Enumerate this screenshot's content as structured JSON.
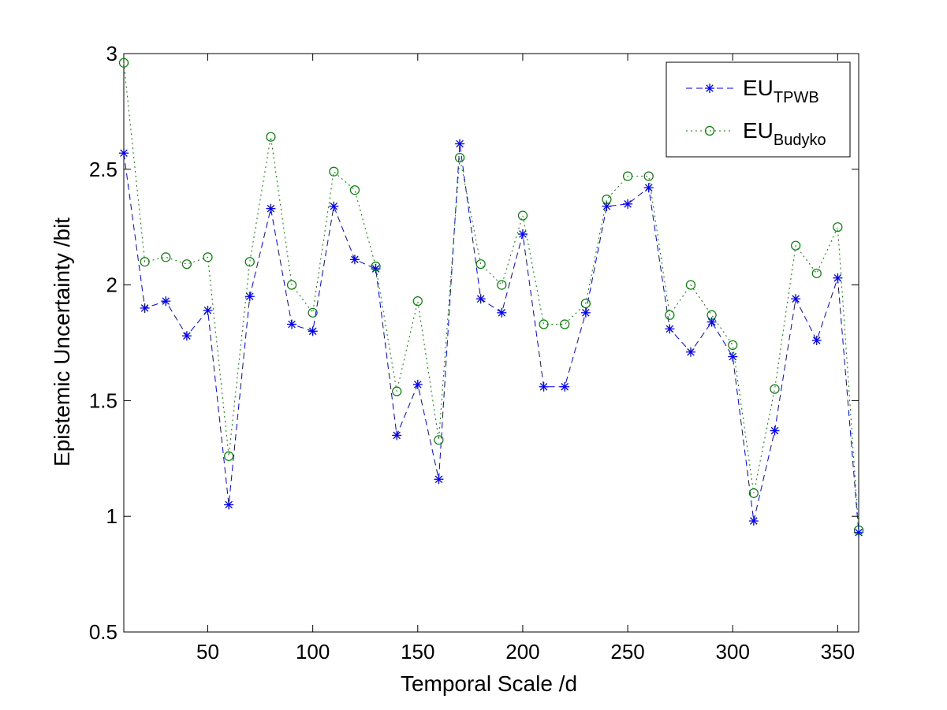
{
  "chart_data": {
    "type": "line",
    "xlabel": "Temporal Scale /d",
    "ylabel": "Epistemic Uncertainty /bit",
    "xlim": [
      10,
      360
    ],
    "ylim": [
      0.5,
      3
    ],
    "xticks": [
      50,
      100,
      150,
      200,
      250,
      300,
      350
    ],
    "yticks": [
      0.5,
      1,
      1.5,
      2,
      2.5,
      3
    ],
    "grid": false,
    "legend_position": "top-right",
    "x": [
      10,
      20,
      30,
      40,
      50,
      60,
      70,
      80,
      90,
      100,
      110,
      120,
      130,
      140,
      150,
      160,
      170,
      180,
      190,
      200,
      210,
      220,
      230,
      240,
      250,
      260,
      270,
      280,
      290,
      300,
      310,
      320,
      330,
      340,
      350,
      360
    ],
    "series": [
      {
        "name": "EU",
        "name_sub": "TPWB",
        "color": "#0000ff",
        "line_style": "dashed",
        "marker": "asterisk",
        "values": [
          2.57,
          1.9,
          1.93,
          1.78,
          1.89,
          1.05,
          1.95,
          2.33,
          1.83,
          1.8,
          2.34,
          2.11,
          2.07,
          1.35,
          1.57,
          1.16,
          2.61,
          1.94,
          1.88,
          2.22,
          1.56,
          1.56,
          1.88,
          2.34,
          2.35,
          2.42,
          1.81,
          1.71,
          1.84,
          1.69,
          0.98,
          1.37,
          1.94,
          1.76,
          2.03,
          0.93
        ]
      },
      {
        "name": "EU",
        "name_sub": "Budyko",
        "color": "#008000",
        "line_style": "dotted",
        "marker": "circle",
        "values": [
          2.96,
          2.1,
          2.12,
          2.09,
          2.12,
          1.26,
          2.1,
          2.64,
          2.0,
          1.88,
          2.49,
          2.41,
          2.08,
          1.54,
          1.93,
          1.33,
          2.55,
          2.09,
          2.0,
          2.3,
          1.83,
          1.83,
          1.92,
          2.37,
          2.47,
          2.47,
          1.87,
          2.0,
          1.87,
          1.74,
          1.1,
          1.55,
          2.17,
          2.05,
          2.25,
          0.94
        ]
      }
    ]
  }
}
